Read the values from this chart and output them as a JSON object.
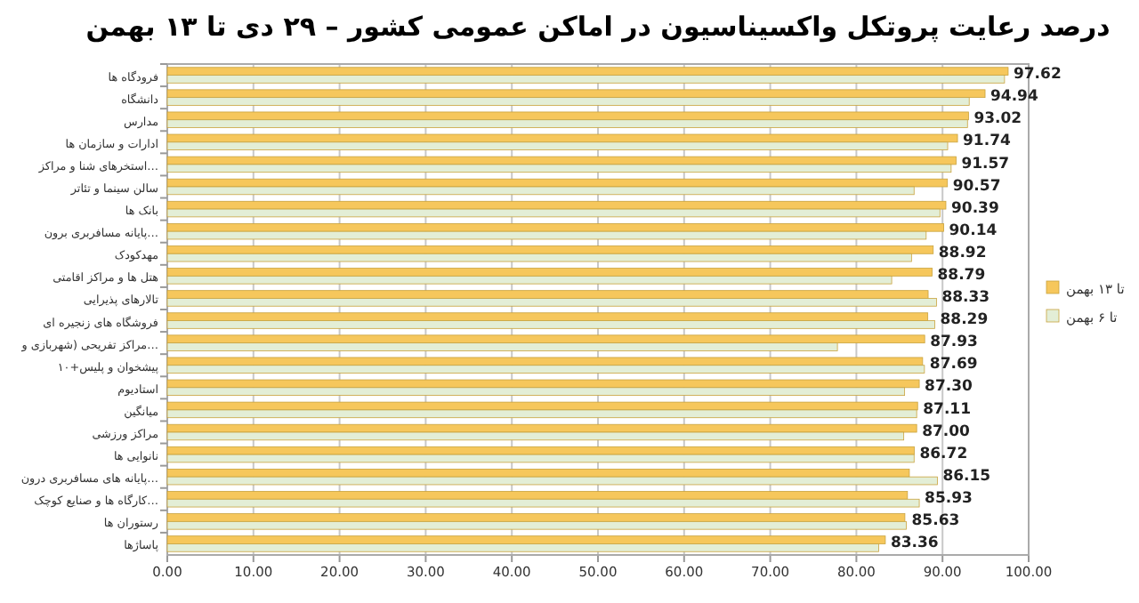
{
  "chart_data": {
    "type": "bar",
    "orientation": "horizontal",
    "title": "درصد رعایت پروتکل واکسیناسیون در اماکن عمومی کشور – ۲۹ دی تا ۱۳ بهمن",
    "categories": [
      "فرودگاه ها",
      "دانشگاه",
      "مدارس",
      "ادارات و سازمان ها",
      "استخرهای شنا و مراکز…",
      "سالن سینما و تئاتر",
      "بانک ها",
      "پایانه مسافربری برون…",
      "مهدکودک",
      "هتل ها و مراکز اقامتی",
      "تالارهای پذیرایی",
      "فروشگاه های زنجیره ای",
      "مراکز تفریحی (شهربازی و…",
      "پیشخوان و پلیس+۱۰",
      "استادیوم",
      "میانگین",
      "مراکز ورزشی",
      "نانوایی ها",
      "پایانه های مسافربری درون…",
      "کارگاه ها و صنایع کوچک…",
      "رستوران ها",
      "پاساژها"
    ],
    "series": [
      {
        "name": "تا ۱۳ بهمن",
        "color": "#f6c75c",
        "values": [
          97.62,
          94.94,
          93.02,
          91.74,
          91.57,
          90.57,
          90.39,
          90.14,
          88.92,
          88.79,
          88.33,
          88.29,
          87.93,
          87.69,
          87.3,
          87.11,
          87.0,
          86.72,
          86.15,
          85.93,
          85.63,
          83.36
        ],
        "value_labels": [
          "97.62",
          "94.94",
          "93.02",
          "91.74",
          "91.57",
          "90.57",
          "90.39",
          "90.14",
          "88.92",
          "88.79",
          "88.33",
          "88.29",
          "87.93",
          "87.69",
          "87.30",
          "87.11",
          "87.00",
          "86.72",
          "86.15",
          "85.93",
          "85.63",
          "83.36"
        ]
      },
      {
        "name": "تا ۶ بهمن",
        "color": "#e3eed6",
        "values": [
          97.2,
          93.1,
          92.9,
          90.6,
          91.0,
          86.7,
          89.7,
          88.1,
          86.4,
          84.1,
          89.3,
          89.1,
          77.8,
          87.9,
          85.6,
          87.0,
          85.5,
          86.7,
          89.4,
          87.3,
          85.8,
          82.6
        ]
      }
    ],
    "xlim": [
      0,
      100
    ],
    "xticks": [
      {
        "value": 0,
        "label": "0.00"
      },
      {
        "value": 10,
        "label": "10.00"
      },
      {
        "value": 20,
        "label": "20.00"
      },
      {
        "value": 30,
        "label": "30.00"
      },
      {
        "value": 40,
        "label": "40.00"
      },
      {
        "value": 50,
        "label": "50.00"
      },
      {
        "value": 60,
        "label": "60.00"
      },
      {
        "value": 70,
        "label": "70.00"
      },
      {
        "value": 80,
        "label": "80.00"
      },
      {
        "value": 90,
        "label": "90.00"
      },
      {
        "value": 100,
        "label": "100.00"
      }
    ],
    "grid": "x",
    "legend": "right"
  }
}
